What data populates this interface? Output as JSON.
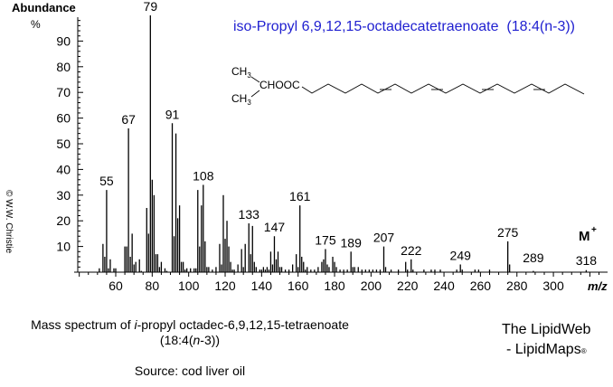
{
  "header": {
    "compound_title": "iso-Propyl 6,9,12,15-octadecatetraenoate  (18:4(n-3))",
    "structure": {
      "ch3_top": "CH",
      "ch3_bottom": "CH",
      "sub3": "3",
      "group": "CHOOC"
    }
  },
  "copyright": "© W.W. Christie",
  "caption": {
    "line1_pre": "Mass spectrum of ",
    "line1_italic": "i",
    "line1_post": "-propyl octadec-6,9,12,15-tetraenoate",
    "line2_pre": "(18:4(",
    "line2_italic": "n",
    "line2_post": "-3))",
    "source": "Source: cod liver oil"
  },
  "brand": {
    "line1": "The LipidWeb",
    "line2": "- LipidMaps",
    "mark": "®"
  },
  "chart_data": {
    "type": "bar",
    "title": "iso-Propyl 6,9,12,15-octadecatetraenoate (18:4(n-3))",
    "xlabel": "m/z",
    "ylabel": "Abundance %",
    "xlim": [
      40,
      325
    ],
    "ylim": [
      0,
      100
    ],
    "xticks": [
      60,
      80,
      100,
      120,
      140,
      160,
      180,
      200,
      220,
      240,
      260,
      280,
      300
    ],
    "yticks": [
      10,
      20,
      30,
      40,
      50,
      60,
      70,
      80,
      90
    ],
    "molecular_ion_label": "M+",
    "labeled_peaks": [
      55,
      67,
      79,
      91,
      108,
      133,
      147,
      161,
      175,
      189,
      207,
      222,
      249,
      275,
      289,
      318
    ],
    "peaks": [
      [
        51,
        1.5
      ],
      [
        53,
        11
      ],
      [
        54,
        6
      ],
      [
        55,
        32
      ],
      [
        56,
        1.5
      ],
      [
        57,
        5
      ],
      [
        59,
        1.5
      ],
      [
        60,
        1.5
      ],
      [
        65,
        10
      ],
      [
        66,
        10
      ],
      [
        67,
        56
      ],
      [
        68,
        6
      ],
      [
        69,
        15
      ],
      [
        70,
        3
      ],
      [
        71,
        4
      ],
      [
        73,
        5
      ],
      [
        74,
        0.5
      ],
      [
        77,
        25
      ],
      [
        78,
        15
      ],
      [
        79,
        100
      ],
      [
        80,
        36
      ],
      [
        81,
        30
      ],
      [
        82,
        7
      ],
      [
        83,
        7
      ],
      [
        84,
        2
      ],
      [
        85,
        4
      ],
      [
        87,
        1.5
      ],
      [
        88,
        0.5
      ],
      [
        91,
        58
      ],
      [
        92,
        14
      ],
      [
        93,
        54
      ],
      [
        94,
        21
      ],
      [
        95,
        26
      ],
      [
        96,
        4
      ],
      [
        97,
        4
      ],
      [
        98,
        1
      ],
      [
        99,
        1.5
      ],
      [
        101,
        1.5
      ],
      [
        103,
        1.5
      ],
      [
        104,
        1.5
      ],
      [
        105,
        32
      ],
      [
        106,
        10
      ],
      [
        107,
        26
      ],
      [
        108,
        34
      ],
      [
        109,
        12
      ],
      [
        110,
        2
      ],
      [
        111,
        2
      ],
      [
        113,
        1
      ],
      [
        115,
        2
      ],
      [
        117,
        11
      ],
      [
        118,
        3
      ],
      [
        119,
        30
      ],
      [
        120,
        13
      ],
      [
        121,
        20
      ],
      [
        122,
        10
      ],
      [
        123,
        4
      ],
      [
        124,
        1
      ],
      [
        125,
        1
      ],
      [
        127,
        3
      ],
      [
        129,
        9
      ],
      [
        130,
        2
      ],
      [
        131,
        11
      ],
      [
        133,
        19
      ],
      [
        134,
        7
      ],
      [
        135,
        18
      ],
      [
        136,
        4
      ],
      [
        137,
        2
      ],
      [
        139,
        1
      ],
      [
        140,
        1
      ],
      [
        141,
        2
      ],
      [
        142,
        1
      ],
      [
        143,
        2
      ],
      [
        144,
        1
      ],
      [
        145,
        8
      ],
      [
        146,
        3
      ],
      [
        147,
        14
      ],
      [
        148,
        5
      ],
      [
        149,
        8
      ],
      [
        150,
        2
      ],
      [
        151,
        2
      ],
      [
        153,
        1
      ],
      [
        155,
        1
      ],
      [
        157,
        3
      ],
      [
        159,
        7
      ],
      [
        160,
        2
      ],
      [
        161,
        26
      ],
      [
        162,
        6
      ],
      [
        163,
        4
      ],
      [
        164,
        1
      ],
      [
        165,
        2
      ],
      [
        167,
        1
      ],
      [
        169,
        1
      ],
      [
        171,
        2
      ],
      [
        173,
        4
      ],
      [
        174,
        5
      ],
      [
        175,
        9
      ],
      [
        176,
        3
      ],
      [
        177,
        2
      ],
      [
        179,
        6
      ],
      [
        180,
        4
      ],
      [
        181,
        2
      ],
      [
        183,
        1
      ],
      [
        185,
        1
      ],
      [
        187,
        1
      ],
      [
        189,
        8
      ],
      [
        190,
        2
      ],
      [
        191,
        2
      ],
      [
        193,
        2
      ],
      [
        195,
        1
      ],
      [
        197,
        1
      ],
      [
        199,
        1
      ],
      [
        201,
        1
      ],
      [
        203,
        1
      ],
      [
        205,
        1
      ],
      [
        207,
        10
      ],
      [
        208,
        2
      ],
      [
        211,
        1
      ],
      [
        215,
        1
      ],
      [
        219,
        4
      ],
      [
        220,
        1
      ],
      [
        222,
        5
      ],
      [
        223,
        1
      ],
      [
        229,
        1
      ],
      [
        233,
        1
      ],
      [
        235,
        1
      ],
      [
        238,
        1
      ],
      [
        247,
        1
      ],
      [
        249,
        3
      ],
      [
        250,
        1
      ],
      [
        257,
        1
      ],
      [
        259,
        1
      ],
      [
        265,
        1
      ],
      [
        275,
        12
      ],
      [
        276,
        3
      ],
      [
        289,
        0.5
      ],
      [
        318,
        0.8
      ]
    ]
  }
}
